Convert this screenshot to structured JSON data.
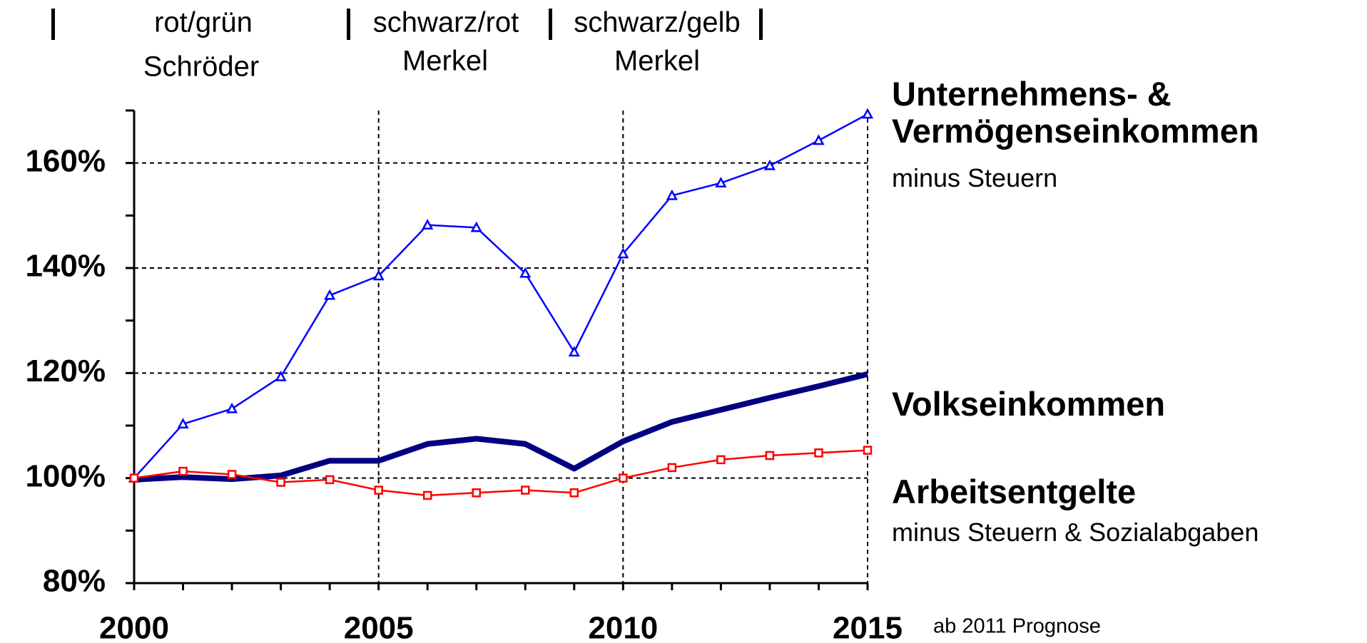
{
  "chart_data": {
    "type": "line",
    "x": [
      2000,
      2001,
      2002,
      2003,
      2004,
      2005,
      2006,
      2007,
      2008,
      2009,
      2010,
      2011,
      2012,
      2013,
      2014,
      2015
    ],
    "series": [
      {
        "name": "Unternehmens- & Vermögenseinkommen",
        "color": "#0000ff",
        "marker": "triangle",
        "values": [
          100,
          110.3,
          113.2,
          119.3,
          134.8,
          138.5,
          148.2,
          147.7,
          139,
          124,
          142.7,
          153.8,
          156.2,
          159.5,
          164.3,
          169.3
        ]
      },
      {
        "name": "Volkseinkommen",
        "color": "#000080",
        "values": [
          99.7,
          100.2,
          99.8,
          100.5,
          103.3,
          103.3,
          106.5,
          107.5,
          106.5,
          101.8,
          107,
          110.7,
          113,
          115.3,
          117.5,
          119.8
        ]
      },
      {
        "name": "Arbeitsentgelte",
        "color": "#ff0000",
        "marker": "square",
        "values": [
          100,
          101.3,
          100.7,
          99.2,
          99.7,
          97.7,
          96.7,
          97.2,
          97.7,
          97.2,
          100,
          102,
          103.5,
          104.3,
          104.8,
          105.3
        ]
      }
    ],
    "series_notes": [
      "minus Steuern",
      null,
      "minus Steuern & Sozialabgaben"
    ],
    "xlim": [
      2000,
      2015
    ],
    "xticks": [
      2000,
      2005,
      2010,
      2015
    ],
    "ylim": [
      80,
      170
    ],
    "yticks": [
      {
        "value": 80,
        "label": "80%"
      },
      {
        "value": 100,
        "label": "100%"
      },
      {
        "value": 120,
        "label": "120%"
      },
      {
        "value": 140,
        "label": "140%"
      },
      {
        "value": 160,
        "label": "160%"
      }
    ],
    "grid": true,
    "periods": [
      {
        "label": "rot/grün",
        "leader": "Schröder"
      },
      {
        "label": "schwarz/rot",
        "leader": "Merkel"
      },
      {
        "label": "schwarz/gelb",
        "leader": "Merkel"
      }
    ],
    "note": "ab 2011 Prognose"
  }
}
